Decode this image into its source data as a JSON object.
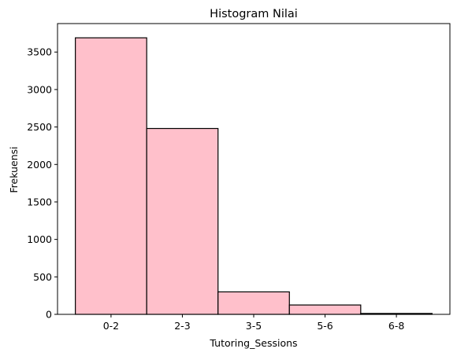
{
  "chart_data": {
    "type": "bar",
    "title": "Histogram Nilai",
    "xlabel": "Tutoring_Sessions",
    "ylabel": "Frekuensi",
    "categories": [
      "0-2",
      "2-3",
      "3-5",
      "5-6",
      "6-8"
    ],
    "values": [
      3690,
      2480,
      300,
      125,
      12
    ],
    "ylim": [
      0,
      3880
    ],
    "yticks": [
      0,
      500,
      1000,
      1500,
      2000,
      2500,
      3000,
      3500
    ],
    "bar_color": "#ffc0cb",
    "edge_color": "#000000",
    "grid": false
  }
}
